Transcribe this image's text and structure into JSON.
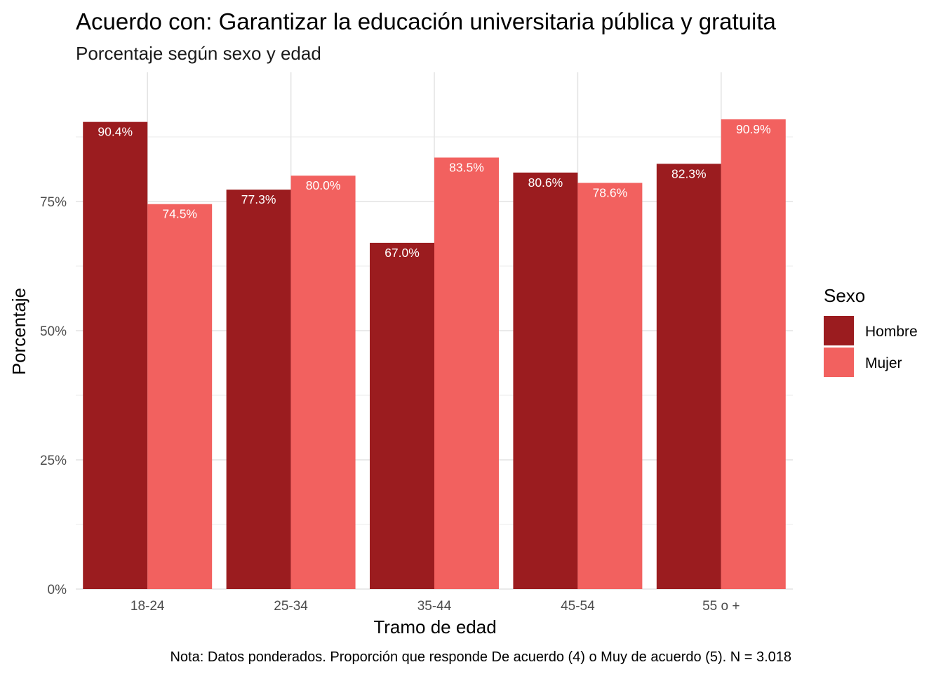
{
  "chart_data": {
    "type": "bar",
    "title": "Acuerdo con: Garantizar la educación universitaria pública y gratuita",
    "subtitle": "Porcentaje según sexo y edad",
    "xlabel": "Tramo de edad",
    "ylabel": "Porcentaje",
    "categories": [
      "18-24",
      "25-34",
      "35-44",
      "45-54",
      "55 o +"
    ],
    "series": [
      {
        "name": "Hombre",
        "color": "#9B1C1F",
        "values": [
          90.4,
          77.3,
          67.0,
          80.6,
          82.3
        ],
        "labels": [
          "90.4%",
          "77.3%",
          "67.0%",
          "80.6%",
          "82.3%"
        ]
      },
      {
        "name": "Mujer",
        "color": "#F2615F",
        "values": [
          74.5,
          80.0,
          83.5,
          78.6,
          90.9
        ],
        "labels": [
          "74.5%",
          "80.0%",
          "83.5%",
          "78.6%",
          "90.9%"
        ]
      }
    ],
    "ylim": [
      0,
      100
    ],
    "yticks": [
      0,
      25,
      50,
      75
    ],
    "ytick_labels": [
      "0%",
      "25%",
      "50%",
      "75%"
    ],
    "grid": true,
    "legend": {
      "title": "Sexo",
      "position": "right"
    },
    "caption": "Nota: Datos ponderados. Proporción que responde De acuerdo (4) o Muy de acuerdo (5). N = 3.018"
  }
}
